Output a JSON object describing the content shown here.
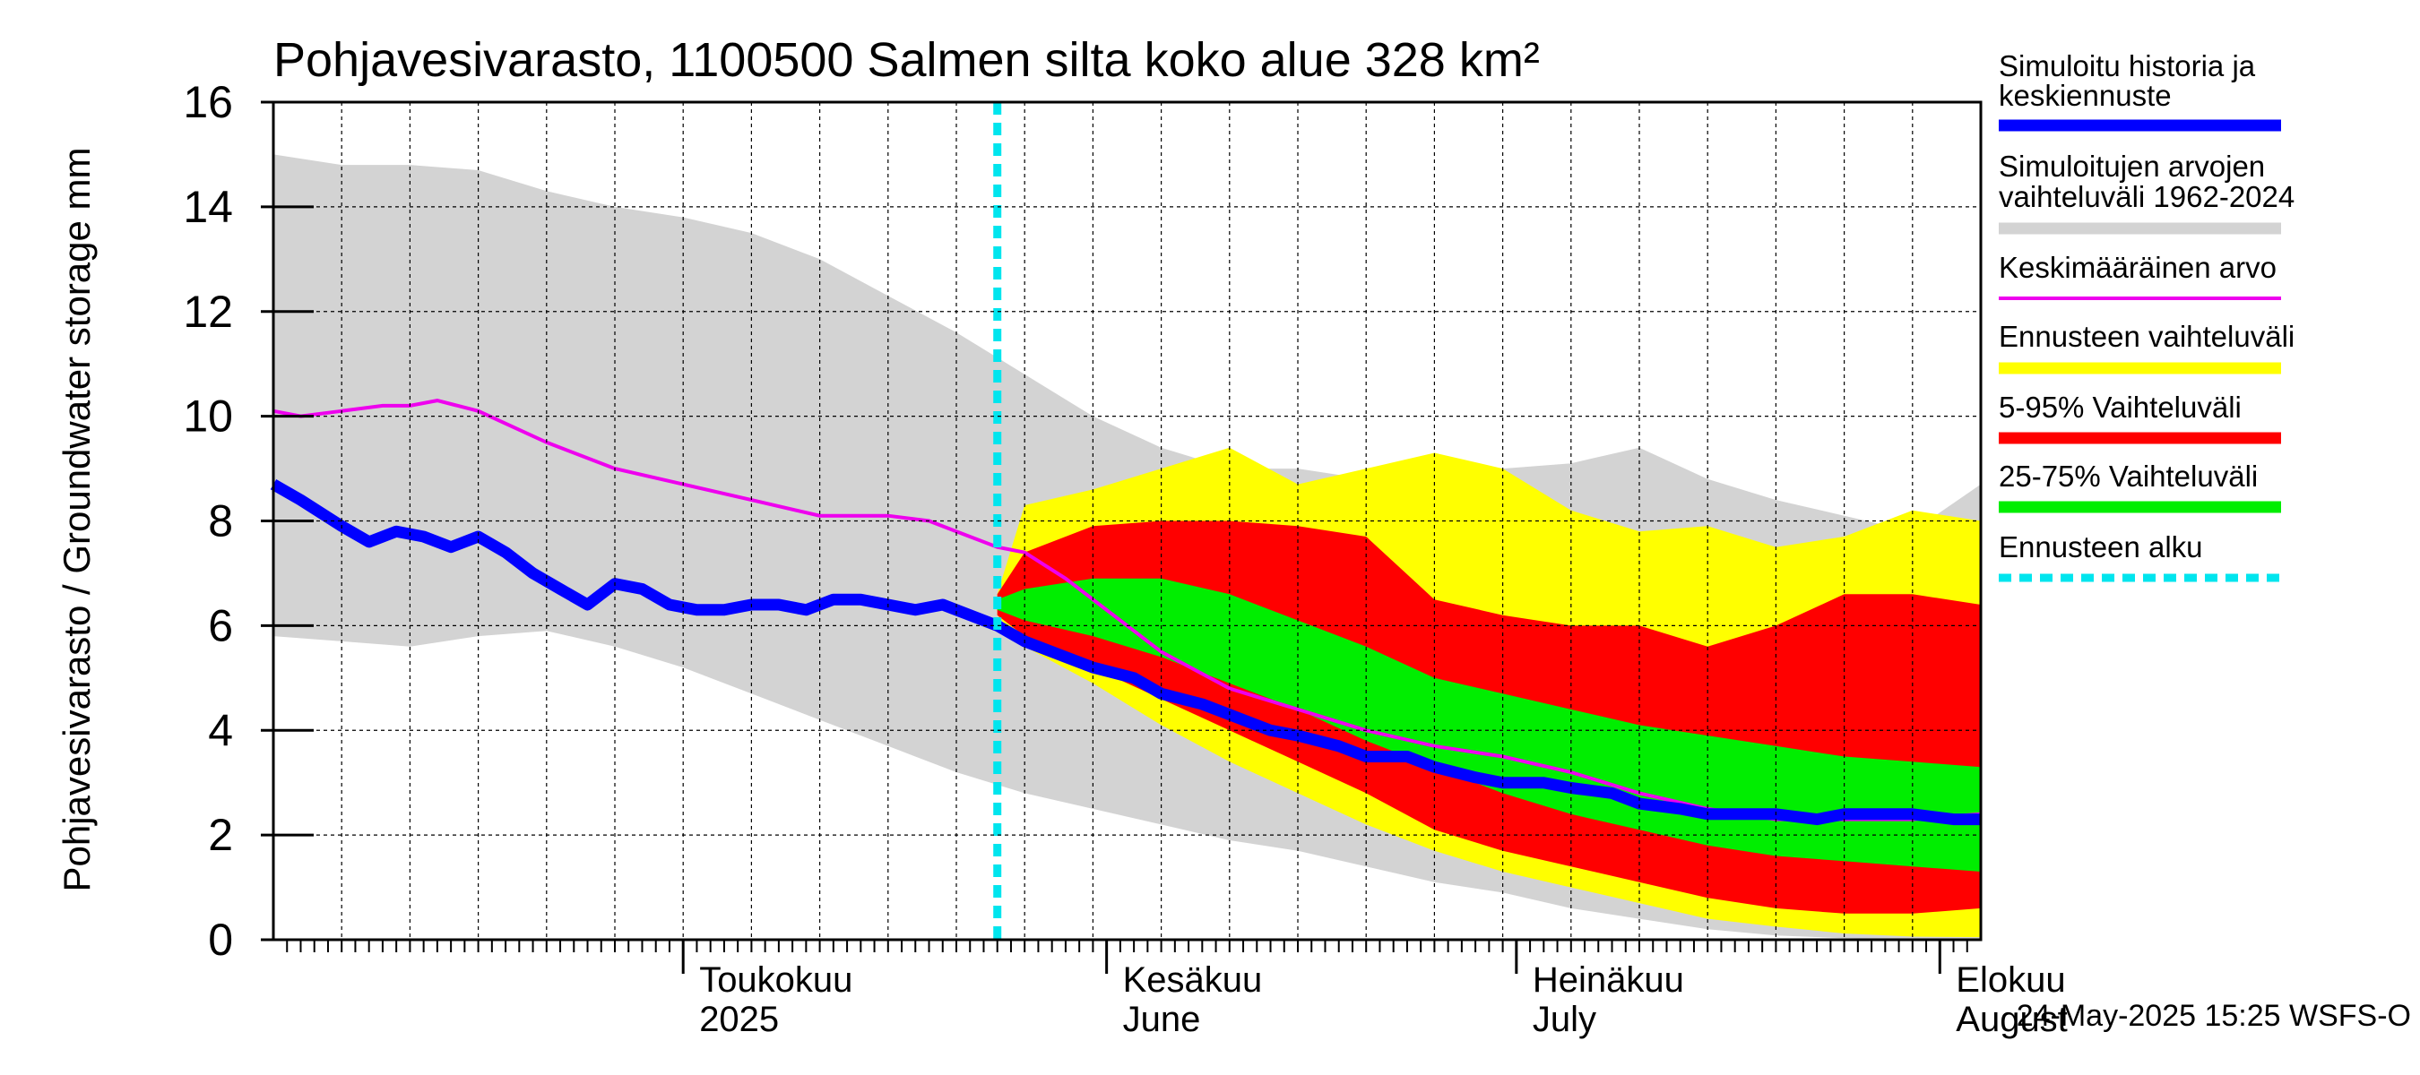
{
  "chart_data": {
    "type": "area",
    "title": "Pohjavesivarasto, 1100500 Salmen silta koko alue 328 km²",
    "ylabel": "Pohjavesivarasto / Groundwater storage   mm",
    "ylim": [
      0,
      16
    ],
    "yticks": [
      0,
      2,
      4,
      6,
      8,
      10,
      12,
      14,
      16
    ],
    "x_day_range": [
      0,
      125
    ],
    "x_start_date": "2025-04-01",
    "month_labels": [
      {
        "day": 30,
        "line1": "Toukokuu",
        "line2": "2025"
      },
      {
        "day": 61,
        "line1": "Kesäkuu",
        "line2": "June"
      },
      {
        "day": 91,
        "line1": "Heinäkuu",
        "line2": "July"
      },
      {
        "day": 122,
        "line1": "Elokuu",
        "line2": "August"
      }
    ],
    "forecast_start_day": 53,
    "timestamp": "24-May-2025 15:25 WSFS-O",
    "colors": {
      "history_range": "#d3d3d3",
      "forecast_range": "#ffff00",
      "p5_95": "#ff0000",
      "p25_75": "#00ee00",
      "mean": "#ee00ee",
      "simulated": "#0000ff",
      "forecast_start": "#00e5ee",
      "grid": "#000000"
    },
    "legend": [
      {
        "label": "Simuloitu historia ja keskiennuste",
        "color": "#0000ff",
        "style": "line-thick"
      },
      {
        "label": "Simuloitujen arvojen vaihteluväli 1962-2024",
        "color": "#d3d3d3",
        "style": "line-thick"
      },
      {
        "label": "Keskimääräinen arvo",
        "color": "#ee00ee",
        "style": "line-thin"
      },
      {
        "label": "Ennusteen vaihteluväli",
        "color": "#ffff00",
        "style": "line-thick"
      },
      {
        "label": "5-95% Vaihteluväli",
        "color": "#ff0000",
        "style": "line-thick"
      },
      {
        "label": "25-75% Vaihteluväli",
        "color": "#00ee00",
        "style": "line-thick"
      },
      {
        "label": "Ennusteen alku",
        "color": "#00e5ee",
        "style": "line-dashed"
      }
    ],
    "series": {
      "history_upper": {
        "name": "Simuloitujen arvojen vaihteluväli max",
        "x": [
          0,
          5,
          10,
          15,
          20,
          25,
          30,
          35,
          40,
          45,
          50,
          55,
          60,
          65,
          70,
          75,
          80,
          85,
          90,
          95,
          100,
          105,
          110,
          115,
          120,
          125
        ],
        "values": [
          15.0,
          14.8,
          14.8,
          14.7,
          14.3,
          14.0,
          13.8,
          13.5,
          13.0,
          12.3,
          11.6,
          10.8,
          10.0,
          9.4,
          9.0,
          9.0,
          8.8,
          9.2,
          9.0,
          9.1,
          9.4,
          8.8,
          8.4,
          8.1,
          7.8,
          8.7
        ]
      },
      "history_lower": {
        "name": "Simuloitujen arvojen vaihteluväli min",
        "x": [
          0,
          5,
          10,
          15,
          20,
          25,
          30,
          35,
          40,
          45,
          50,
          55,
          60,
          65,
          70,
          75,
          80,
          85,
          90,
          95,
          100,
          105,
          110,
          115,
          120,
          125
        ],
        "values": [
          5.8,
          5.7,
          5.6,
          5.8,
          5.9,
          5.6,
          5.2,
          4.7,
          4.2,
          3.7,
          3.2,
          2.8,
          2.5,
          2.2,
          1.9,
          1.7,
          1.4,
          1.1,
          0.9,
          0.6,
          0.4,
          0.2,
          0.08,
          0.03,
          0.01,
          0.0
        ]
      },
      "forecast_upper": {
        "name": "Ennusteen vaihteluväli max",
        "x": [
          53,
          55,
          60,
          65,
          70,
          75,
          80,
          85,
          90,
          95,
          100,
          105,
          110,
          115,
          120,
          125
        ],
        "values": [
          6.6,
          8.3,
          8.6,
          9.0,
          9.4,
          8.7,
          9.0,
          9.3,
          9.0,
          8.2,
          7.8,
          7.9,
          7.5,
          7.7,
          8.2,
          8.0
        ]
      },
      "forecast_lower": {
        "name": "Ennusteen vaihteluväli min",
        "x": [
          53,
          55,
          60,
          65,
          70,
          75,
          80,
          85,
          90,
          95,
          100,
          105,
          110,
          115,
          120,
          125
        ],
        "values": [
          6.2,
          5.6,
          4.9,
          4.1,
          3.4,
          2.8,
          2.2,
          1.7,
          1.3,
          1.0,
          0.7,
          0.4,
          0.25,
          0.12,
          0.06,
          0.05
        ]
      },
      "p95": {
        "name": "95%",
        "x": [
          53,
          55,
          60,
          65,
          70,
          75,
          80,
          85,
          90,
          95,
          100,
          105,
          110,
          115,
          120,
          125
        ],
        "values": [
          6.6,
          7.4,
          7.9,
          8.0,
          8.0,
          7.9,
          7.7,
          6.5,
          6.2,
          6.0,
          6.0,
          5.6,
          6.0,
          6.6,
          6.6,
          6.4
        ]
      },
      "p5": {
        "name": "5%",
        "x": [
          53,
          55,
          60,
          65,
          70,
          75,
          80,
          85,
          90,
          95,
          100,
          105,
          110,
          115,
          120,
          125
        ],
        "values": [
          6.2,
          5.8,
          5.2,
          4.6,
          4.0,
          3.4,
          2.8,
          2.1,
          1.7,
          1.4,
          1.1,
          0.8,
          0.6,
          0.5,
          0.5,
          0.6
        ]
      },
      "p75": {
        "name": "75%",
        "x": [
          53,
          55,
          60,
          65,
          70,
          75,
          80,
          85,
          90,
          95,
          100,
          105,
          110,
          115,
          120,
          125
        ],
        "values": [
          6.5,
          6.7,
          6.9,
          6.9,
          6.6,
          6.1,
          5.6,
          5.0,
          4.7,
          4.4,
          4.1,
          3.9,
          3.7,
          3.5,
          3.4,
          3.3
        ]
      },
      "p25": {
        "name": "25%",
        "x": [
          53,
          55,
          60,
          65,
          70,
          75,
          80,
          85,
          90,
          95,
          100,
          105,
          110,
          115,
          120,
          125
        ],
        "values": [
          6.3,
          6.1,
          5.8,
          5.4,
          4.9,
          4.4,
          3.8,
          3.3,
          2.8,
          2.4,
          2.1,
          1.8,
          1.6,
          1.5,
          1.4,
          1.3
        ]
      },
      "mean": {
        "name": "Keskimääräinen arvo",
        "x": [
          0,
          2,
          5,
          8,
          10,
          12,
          15,
          20,
          25,
          30,
          35,
          40,
          45,
          48,
          50,
          53,
          55,
          58,
          60,
          63,
          65,
          70,
          75,
          80,
          85,
          90,
          95,
          100,
          105,
          110,
          115,
          120,
          125
        ],
        "values": [
          10.1,
          10.0,
          10.1,
          10.2,
          10.2,
          10.3,
          10.1,
          9.5,
          9.0,
          8.7,
          8.4,
          8.1,
          8.1,
          8.0,
          7.8,
          7.5,
          7.4,
          6.9,
          6.5,
          5.9,
          5.5,
          4.8,
          4.4,
          4.0,
          3.7,
          3.5,
          3.2,
          2.8,
          2.5,
          2.3,
          2.3,
          2.3,
          2.4
        ]
      },
      "simulated": {
        "name": "Simuloitu historia ja keskiennuste",
        "x": [
          0,
          2,
          5,
          7,
          9,
          11,
          13,
          15,
          17,
          19,
          21,
          23,
          25,
          27,
          29,
          31,
          33,
          35,
          37,
          39,
          41,
          43,
          45,
          47,
          49,
          51,
          53,
          55,
          58,
          60,
          63,
          65,
          68,
          70,
          73,
          75,
          78,
          80,
          83,
          85,
          88,
          90,
          93,
          95,
          98,
          100,
          103,
          105,
          108,
          110,
          113,
          115,
          118,
          120,
          123,
          125
        ],
        "values": [
          8.7,
          8.4,
          7.9,
          7.6,
          7.8,
          7.7,
          7.5,
          7.7,
          7.4,
          7.0,
          6.7,
          6.4,
          6.8,
          6.7,
          6.4,
          6.3,
          6.3,
          6.4,
          6.4,
          6.3,
          6.5,
          6.5,
          6.4,
          6.3,
          6.4,
          6.2,
          6.0,
          5.7,
          5.4,
          5.2,
          5.0,
          4.7,
          4.5,
          4.3,
          4.0,
          3.9,
          3.7,
          3.5,
          3.5,
          3.3,
          3.1,
          3.0,
          3.0,
          2.9,
          2.8,
          2.6,
          2.5,
          2.4,
          2.4,
          2.4,
          2.3,
          2.4,
          2.4,
          2.4,
          2.3,
          2.3
        ]
      }
    }
  }
}
